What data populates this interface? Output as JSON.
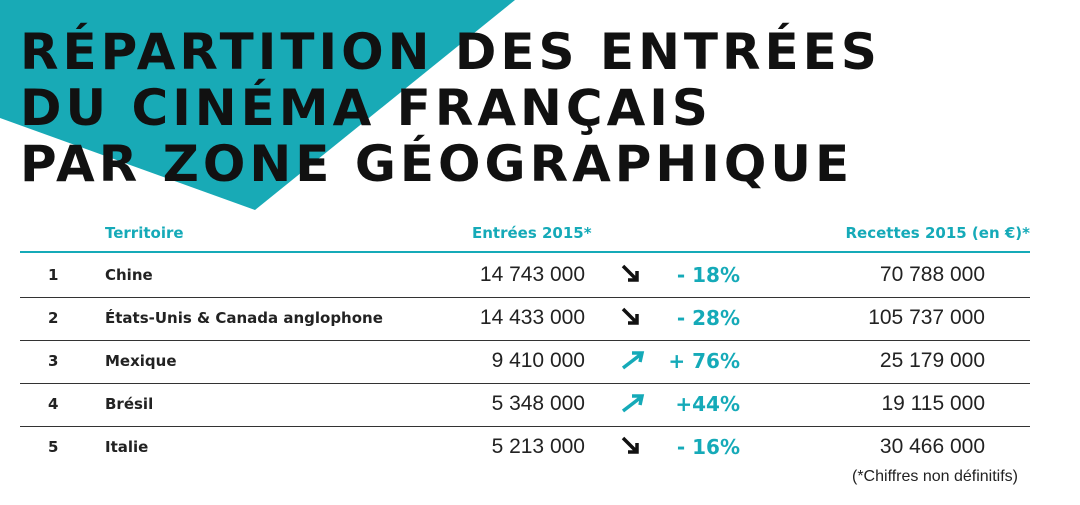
{
  "header": {
    "title": [
      "RÉPARTITION DES ENTRÉES",
      "DU CINÉMA FRANÇAIS",
      "PAR ZONE GÉOGRAPHIQUE"
    ]
  },
  "table": {
    "columns": [
      "Territoire",
      "Entrées 2015*",
      "Recettes 2015 (en €)*"
    ],
    "rows": [
      [
        "1",
        "Chine",
        "14 743 000",
        "- 18%",
        "70 788 000"
      ],
      [
        "2",
        "États-Unis & Canada anglophone",
        "14 433 000",
        "- 28%",
        "105 737 000"
      ],
      [
        "3",
        "Mexique",
        "9 410 000",
        "+ 76%",
        "25 179 000"
      ],
      [
        "4",
        "Brésil",
        "5 348 000",
        "+44%",
        "19 115 000"
      ],
      [
        "5",
        "Italie",
        "5 213 000",
        "- 16%",
        "30 466 000"
      ]
    ],
    "note": "(*Chiffres non définitifs)"
  }
}
